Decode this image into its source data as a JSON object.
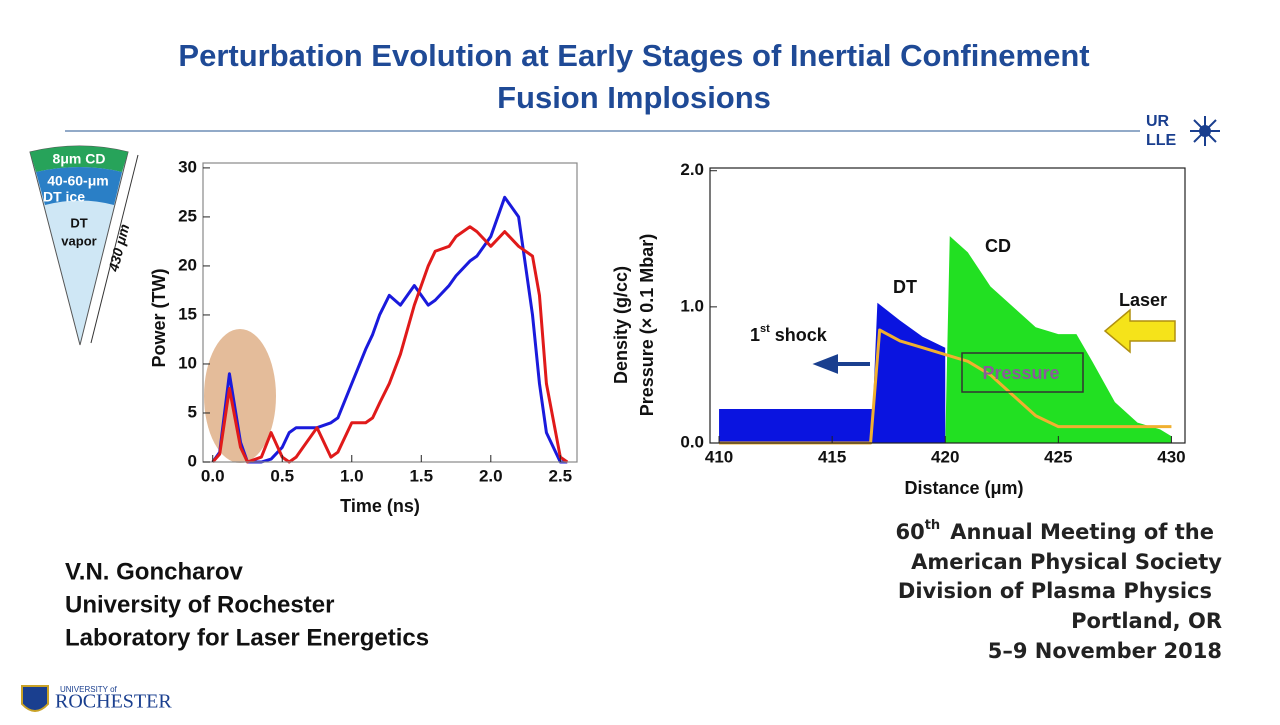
{
  "header": {
    "title_lines": [
      "Perturbation Evolution at Early Stages of Inertial Confinement",
      "Fusion Implosions"
    ],
    "logo_top": [
      "UR",
      "LLE"
    ]
  },
  "target": {
    "layers": [
      "8μm CD",
      "40-60-μm",
      "DT ice",
      "DT",
      "vapor"
    ],
    "radius": "430 μm"
  },
  "chart_data": [
    {
      "type": "line",
      "x_label": "Time (ns)",
      "y_label": "Power (TW)",
      "x": [
        0,
        0.05,
        0.12,
        0.2,
        0.25,
        0.35,
        0.42,
        0.5,
        0.55,
        0.6,
        0.65,
        0.75,
        0.85,
        0.9,
        1.0,
        1.1,
        1.15,
        1.2,
        1.27,
        1.35,
        1.45,
        1.55,
        1.6,
        1.7,
        1.75,
        1.85,
        1.9,
        2.0,
        2.1,
        2.2,
        2.3,
        2.35,
        2.4,
        2.5,
        2.55
      ],
      "series": [
        {
          "color": "#1a1adc",
          "values": [
            0,
            1,
            9,
            2,
            0,
            0,
            0.3,
            1.5,
            3,
            3.5,
            3.5,
            3.5,
            4,
            4.5,
            8,
            11.5,
            13,
            15,
            17,
            16,
            18,
            16,
            16.5,
            18,
            19,
            20.5,
            21,
            23,
            27,
            25,
            15,
            8,
            3,
            0,
            0
          ]
        },
        {
          "color": "#e01a1a",
          "values": [
            0,
            0.8,
            7.5,
            1.5,
            0,
            0.5,
            3,
            0.5,
            0,
            0.5,
            1.5,
            3.5,
            0.5,
            1,
            4,
            4,
            4.5,
            6,
            8,
            11,
            16,
            20,
            21.5,
            22,
            23,
            24,
            23.5,
            22,
            23.5,
            22,
            21,
            17,
            8,
            0.5,
            0
          ]
        }
      ],
      "xlim": [
        -0.07,
        2.62
      ],
      "xticks": [
        {
          "value": 0,
          "label": "0.0"
        },
        0.5,
        {
          "value": 1,
          "label": "1.0"
        },
        1.5,
        {
          "value": 2,
          "label": "2.0"
        },
        2.5
      ],
      "ylim": [
        0,
        30.5
      ],
      "yticks": [
        0,
        5,
        10,
        15,
        20,
        25,
        30
      ]
    },
    {
      "type": "area",
      "x_label": "Distance (μm)",
      "y_label": [
        "Density (g/cc)",
        "Pressure (× 0.1 Mbar)"
      ],
      "series": [
        {
          "type": "area",
          "color": "#0a14e0",
          "x": [
            410,
            416.8,
            417,
            418,
            419,
            420
          ],
          "values": [
            0.25,
            0.25,
            1.03,
            0.9,
            0.78,
            0.7
          ]
        },
        {
          "type": "area",
          "color": "#22e022",
          "x": [
            420,
            420.2,
            421,
            422,
            423,
            424,
            425,
            425.8,
            426.5,
            427.5,
            428.5,
            429.5,
            430
          ],
          "values": [
            0,
            1.52,
            1.4,
            1.15,
            1.0,
            0.85,
            0.8,
            0.8,
            0.6,
            0.3,
            0.15,
            0.1,
            0.05
          ]
        },
        {
          "type": "line",
          "color": "#f0b030",
          "x": [
            410,
            416.7,
            417.1,
            418,
            419,
            420,
            421,
            422,
            423,
            424,
            425,
            430
          ],
          "values": [
            0,
            0,
            0.83,
            0.75,
            0.7,
            0.65,
            0.6,
            0.5,
            0.35,
            0.2,
            0.12,
            0.12
          ]
        }
      ],
      "xlim": [
        409.6,
        430.6
      ],
      "xticks": [
        410,
        415,
        420,
        425,
        430
      ],
      "ylim": [
        0,
        2.02
      ],
      "yticks": [
        {
          "value": 0,
          "label": "0.0"
        },
        {
          "value": 1,
          "label": "1.0"
        },
        {
          "value": 2,
          "label": "2.0"
        }
      ],
      "annotations": {
        "dt": "DT",
        "cd": "CD",
        "laser": "Laser",
        "shock": {
          "number": "1",
          "suffix": "st",
          "text": "shock"
        },
        "pressure": "Pressure"
      }
    }
  ],
  "author": [
    "V.N. Goncharov",
    "University of Rochester",
    "Laboratory for Laser Energetics"
  ],
  "meeting": {
    "ordinal": "60",
    "suffix": "th",
    "lines": [
      "Annual Meeting of the",
      "American Physical Society",
      "Division of Plasma Physics",
      "Portland, OR",
      "5–9 November 2018"
    ]
  },
  "logo_bottom": [
    "UNIVERSITY of",
    "ROCHESTER"
  ]
}
